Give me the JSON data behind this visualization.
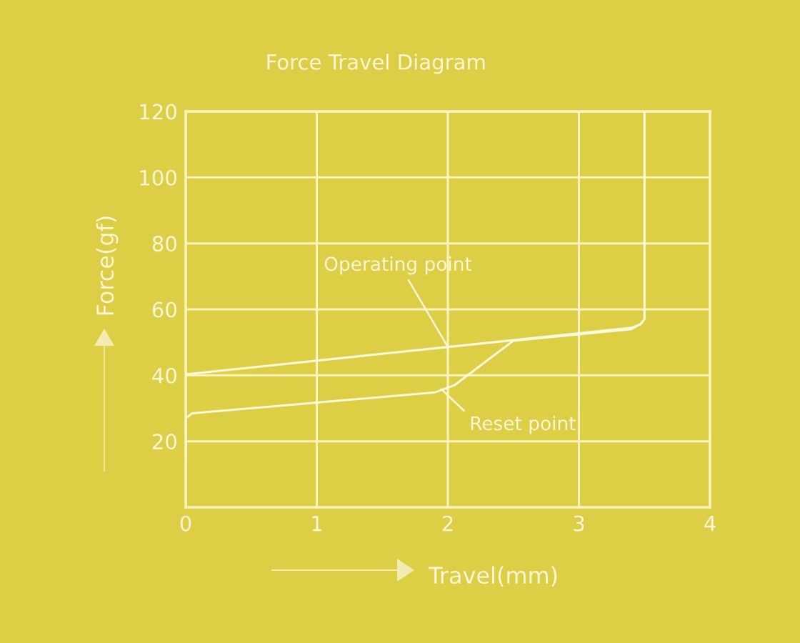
{
  "chart_data": {
    "type": "line",
    "title": "Force Travel Diagram",
    "xlabel": "Travel(mm)",
    "ylabel": "Force(gf)",
    "series": [
      {
        "color": "#fdf9dc",
        "x": [
          0,
          2,
          3.4,
          3.47,
          3.5,
          3.5
        ],
        "values": [
          40.3,
          48.6,
          54.4,
          55.5,
          57,
          120
        ]
      },
      {
        "color": "#fdf9dc",
        "x": [
          0,
          0,
          0.05,
          1.9,
          2.05,
          2.5,
          3.4,
          3.47
        ],
        "values": [
          14,
          27,
          28.5,
          34.8,
          37,
          50.5,
          54,
          55.5
        ]
      }
    ],
    "xlim": [
      0,
      4
    ],
    "ylim": [
      0,
      120
    ],
    "xticks": [
      0,
      1,
      2,
      3,
      4
    ],
    "yticks": [
      20,
      40,
      60,
      80,
      100,
      120
    ],
    "grid": true,
    "line_style": "solid",
    "marker": "none",
    "annotations": [
      {
        "text": "Operating point",
        "x": 2,
        "y": 48.6
      },
      {
        "text": "Reset point",
        "x": 1.95,
        "y": 35.8
      }
    ]
  }
}
